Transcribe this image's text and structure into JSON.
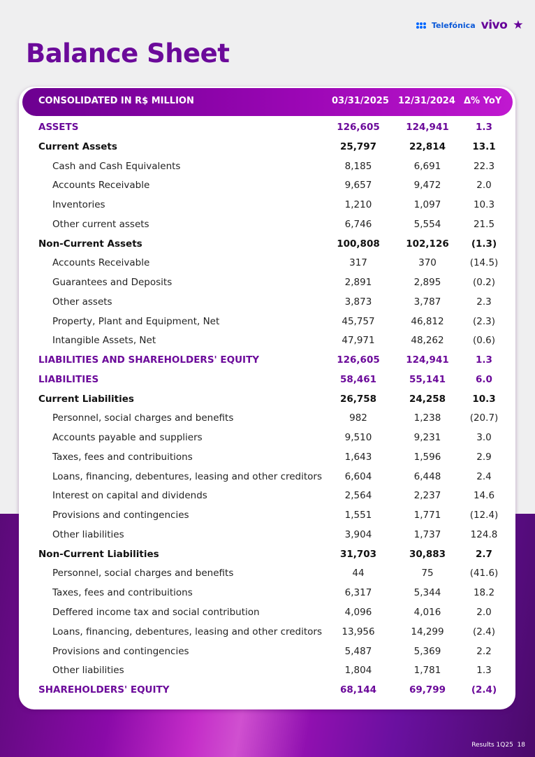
{
  "logo": {
    "telefonica": "Telefónica",
    "vivo": "vivo"
  },
  "title": "Balance Sheet",
  "header": {
    "label": "CONSOLIDATED IN R$ MILLION",
    "col1": "03/31/2025",
    "col2": "12/31/2024",
    "col3": "Δ% YoY"
  },
  "rows": [
    {
      "type": "purple",
      "label": "ASSETS",
      "v1": "126,605",
      "v2": "124,941",
      "v3": "1.3"
    },
    {
      "type": "bold",
      "label": "Current Assets",
      "v1": "25,797",
      "v2": "22,814",
      "v3": "13.1"
    },
    {
      "type": "sub",
      "label": "Cash and Cash Equivalents",
      "v1": "8,185",
      "v2": "6,691",
      "v3": "22.3"
    },
    {
      "type": "sub",
      "label": "Accounts Receivable",
      "v1": "9,657",
      "v2": "9,472",
      "v3": "2.0"
    },
    {
      "type": "sub",
      "label": "Inventories",
      "v1": "1,210",
      "v2": "1,097",
      "v3": "10.3"
    },
    {
      "type": "sub",
      "label": "Other current assets",
      "v1": "6,746",
      "v2": "5,554",
      "v3": "21.5"
    },
    {
      "type": "bold",
      "label": "Non-Current Assets",
      "v1": "100,808",
      "v2": "102,126",
      "v3": "(1.3)"
    },
    {
      "type": "sub",
      "label": "Accounts Receivable",
      "v1": "317",
      "v2": "370",
      "v3": "(14.5)"
    },
    {
      "type": "sub",
      "label": "Guarantees and Deposits",
      "v1": "2,891",
      "v2": "2,895",
      "v3": "(0.2)"
    },
    {
      "type": "sub",
      "label": "Other assets",
      "v1": "3,873",
      "v2": "3,787",
      "v3": "2.3"
    },
    {
      "type": "sub",
      "label": "Property, Plant and Equipment, Net",
      "v1": "45,757",
      "v2": "46,812",
      "v3": "(2.3)"
    },
    {
      "type": "sub",
      "label": "Intangible Assets, Net",
      "v1": "47,971",
      "v2": "48,262",
      "v3": "(0.6)"
    },
    {
      "type": "purple",
      "label": "LIABILITIES AND SHAREHOLDERS' EQUITY",
      "v1": "126,605",
      "v2": "124,941",
      "v3": "1.3"
    },
    {
      "type": "purple",
      "label": "LIABILITIES",
      "v1": "58,461",
      "v2": "55,141",
      "v3": "6.0"
    },
    {
      "type": "bold",
      "label": "Current Liabilities",
      "v1": "26,758",
      "v2": "24,258",
      "v3": "10.3"
    },
    {
      "type": "sub",
      "label": "Personnel, social charges and benefits",
      "v1": "982",
      "v2": "1,238",
      "v3": "(20.7)"
    },
    {
      "type": "sub",
      "label": "Accounts payable and suppliers",
      "v1": "9,510",
      "v2": "9,231",
      "v3": "3.0"
    },
    {
      "type": "sub",
      "label": "Taxes, fees and contribuitions",
      "v1": "1,643",
      "v2": "1,596",
      "v3": "2.9"
    },
    {
      "type": "sub",
      "label": "Loans, financing, debentures, leasing and other creditors",
      "v1": "6,604",
      "v2": "6,448",
      "v3": "2.4"
    },
    {
      "type": "sub",
      "label": "Interest on capital and dividends",
      "v1": "2,564",
      "v2": "2,237",
      "v3": "14.6"
    },
    {
      "type": "sub",
      "label": "Provisions and contingencies",
      "v1": "1,551",
      "v2": "1,771",
      "v3": "(12.4)"
    },
    {
      "type": "sub",
      "label": "Other liabilities",
      "v1": "3,904",
      "v2": "1,737",
      "v3": "124.8"
    },
    {
      "type": "bold",
      "label": "Non-Current Liabilities",
      "v1": "31,703",
      "v2": "30,883",
      "v3": "2.7"
    },
    {
      "type": "sub",
      "label": "Personnel, social charges and benefits",
      "v1": "44",
      "v2": "75",
      "v3": "(41.6)"
    },
    {
      "type": "sub",
      "label": "Taxes, fees and contribuitions",
      "v1": "6,317",
      "v2": "5,344",
      "v3": "18.2"
    },
    {
      "type": "sub",
      "label": "Deffered income tax and social contribution",
      "v1": "4,096",
      "v2": "4,016",
      "v3": "2.0"
    },
    {
      "type": "sub",
      "label": "Loans, financing, debentures, leasing and other creditors",
      "v1": "13,956",
      "v2": "14,299",
      "v3": "(2.4)"
    },
    {
      "type": "sub",
      "label": "Provisions and contingencies",
      "v1": "5,487",
      "v2": "5,369",
      "v3": "2.2"
    },
    {
      "type": "sub",
      "label": "Other liabilities",
      "v1": "1,804",
      "v2": "1,781",
      "v3": "1.3"
    },
    {
      "type": "purple",
      "label": "SHAREHOLDERS' EQUITY",
      "v1": "68,144",
      "v2": "69,799",
      "v3": "(2.4)"
    }
  ],
  "footer": {
    "text": "Results 1Q25",
    "page": "18"
  }
}
